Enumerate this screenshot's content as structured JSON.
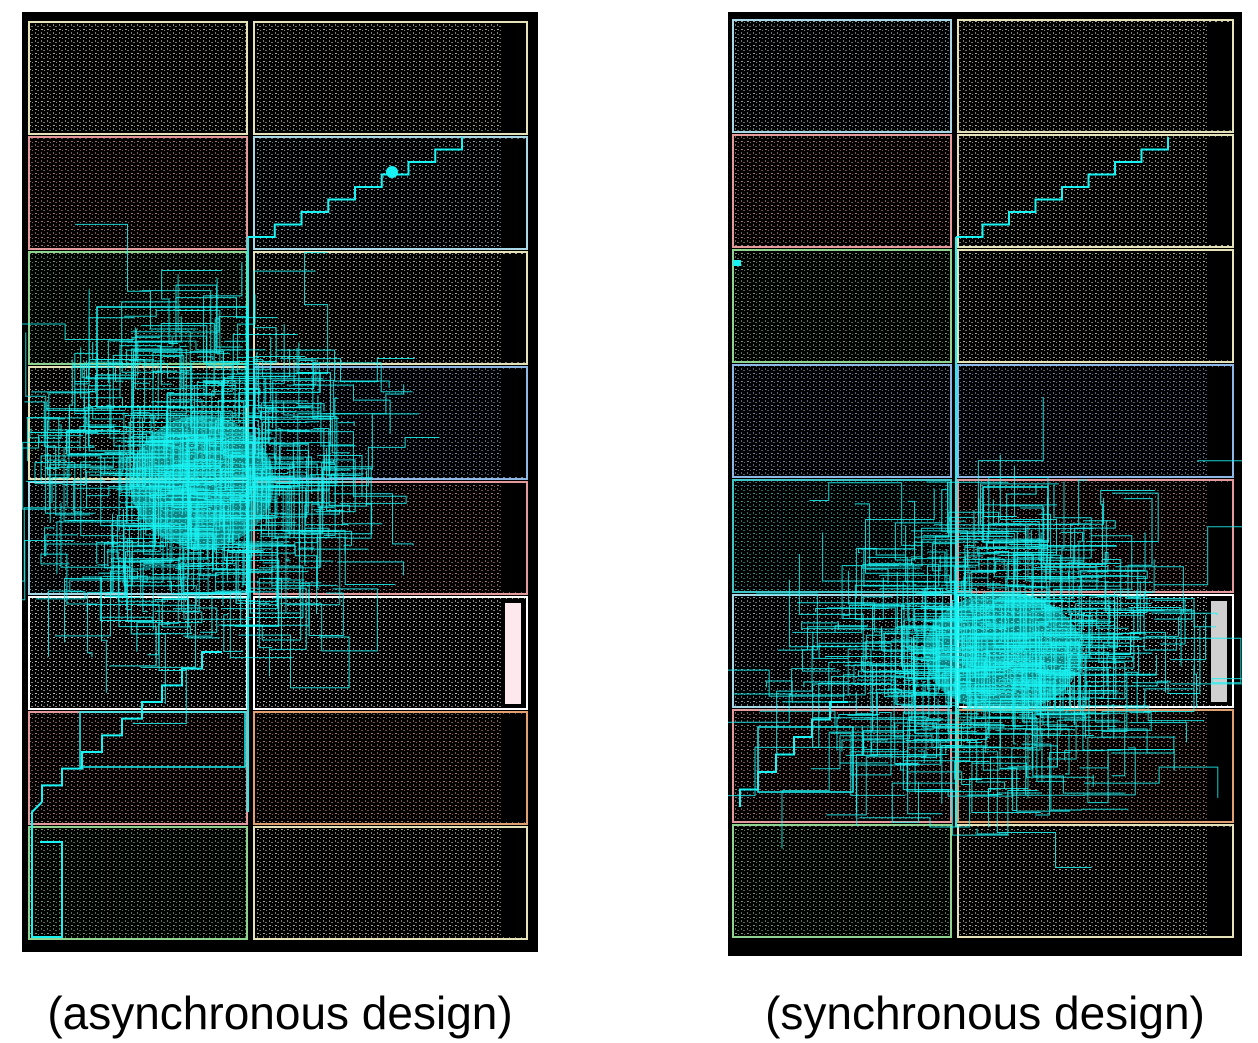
{
  "captions": {
    "left": "(asynchronous design)",
    "right": "(synchronous design)"
  },
  "colors": {
    "background": "#000000",
    "route": "#19f2f2",
    "region_cream": "#e6e2b8",
    "region_pink": "#e49a9a",
    "region_green": "#8fd38f",
    "region_blue": "#8db8e6",
    "region_lightblue": "#a8d8e6",
    "region_orange": "#e2a070",
    "region_teal": "#3ec6c6",
    "region_white": "#ffffff",
    "marker_pink": "#fde8ee",
    "marker_gray": "#d0d0d0"
  },
  "floorplans": [
    {
      "name": "asynchronous",
      "rows": [
        [
          "cream",
          "cream"
        ],
        [
          "pink",
          "lightblue"
        ],
        [
          "green",
          "cream"
        ],
        [
          "cream",
          "blue"
        ],
        [
          "lightblue",
          "pink"
        ],
        [
          "white",
          "white"
        ],
        [
          "pink",
          "orange"
        ],
        [
          "green",
          "cream"
        ]
      ],
      "marker": "marker_pink"
    },
    {
      "name": "synchronous",
      "rows": [
        [
          "lightblue",
          "cream"
        ],
        [
          "pink",
          "cream"
        ],
        [
          "green",
          "cream"
        ],
        [
          "blue",
          "blue"
        ],
        [
          "teal",
          "pink"
        ],
        [
          "lightblue",
          "white"
        ],
        [
          "pink",
          "orange"
        ],
        [
          "green",
          "cream"
        ]
      ],
      "marker": "marker_gray"
    }
  ]
}
